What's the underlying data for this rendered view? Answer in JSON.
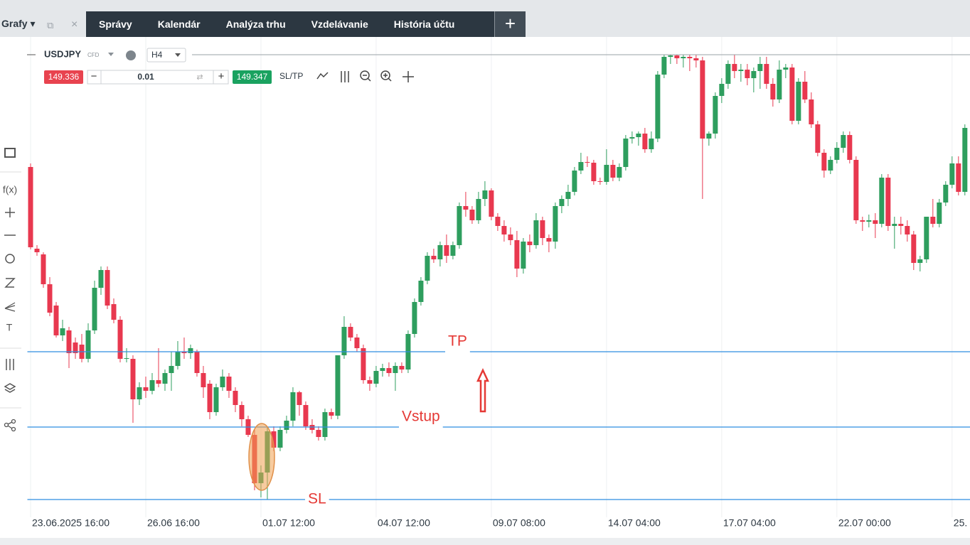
{
  "nav": {
    "home": "Grafy",
    "tabs": [
      "Správy",
      "Kalendár",
      "Analýza trhu",
      "Vzdelávanie",
      "História účtu"
    ]
  },
  "toolbar": {
    "symbol": "USDJPY",
    "symbol_type": "CFD",
    "timeframe": "H4",
    "bid": "149.336",
    "volume": "0.01",
    "ask": "149.347",
    "sl_tp": "SL/TP"
  },
  "left_toolbar": {
    "function_tool": "f(x)",
    "text_tool": "T"
  },
  "chart_data": {
    "type": "candlestick",
    "up_color": "#2e9e5e",
    "down_color": "#e8384f",
    "grid": true,
    "xlim": [
      -0.5,
      146.8
    ],
    "ylim": [
      142.75,
      149.4
    ],
    "xticks": [
      {
        "value": 0,
        "label": "23.06.2025 16:00"
      },
      {
        "value": 18,
        "label": "26.06 16:00"
      },
      {
        "value": 36,
        "label": "01.07 12:00"
      },
      {
        "value": 54,
        "label": "04.07 12:00"
      },
      {
        "value": 72,
        "label": "09.07 08:00"
      },
      {
        "value": 90,
        "label": "14.07 04:00"
      },
      {
        "value": 108,
        "label": "17.07 04:00"
      },
      {
        "value": 126,
        "label": "22.07 00:00"
      },
      {
        "value": 144,
        "label": "25."
      }
    ],
    "levels": [
      {
        "label": "TP",
        "value": 145.05,
        "color": "#2f8ee0"
      },
      {
        "label": "Vstup",
        "value": 143.99,
        "color": "#2f8ee0"
      },
      {
        "label": "SL",
        "value": 142.97,
        "color": "#2f8ee0"
      }
    ],
    "ohlc": [
      [
        147.65,
        147.7,
        146.49,
        146.52
      ],
      [
        146.5,
        146.55,
        146.4,
        146.45
      ],
      [
        146.42,
        146.45,
        145.95,
        146.0
      ],
      [
        146.0,
        146.1,
        145.55,
        145.6
      ],
      [
        145.7,
        145.75,
        145.25,
        145.28
      ],
      [
        145.28,
        145.5,
        145.2,
        145.38
      ],
      [
        145.35,
        145.4,
        144.82,
        145.03
      ],
      [
        145.18,
        145.25,
        144.95,
        145.03
      ],
      [
        145.15,
        145.3,
        144.9,
        144.95
      ],
      [
        144.95,
        145.45,
        144.9,
        145.35
      ],
      [
        145.35,
        146.05,
        145.3,
        145.95
      ],
      [
        145.95,
        146.25,
        145.85,
        146.2
      ],
      [
        146.2,
        146.25,
        145.65,
        145.7
      ],
      [
        145.72,
        145.8,
        145.45,
        145.5
      ],
      [
        145.5,
        145.55,
        144.9,
        144.95
      ],
      [
        144.95,
        145.1,
        144.9,
        144.96
      ],
      [
        144.95,
        145.0,
        144.05,
        144.38
      ],
      [
        144.38,
        144.62,
        144.3,
        144.55
      ],
      [
        144.55,
        144.7,
        144.4,
        144.5
      ],
      [
        144.5,
        144.75,
        144.45,
        144.65
      ],
      [
        144.65,
        145.1,
        144.55,
        144.6
      ],
      [
        144.6,
        144.8,
        144.5,
        144.75
      ],
      [
        144.75,
        145.05,
        144.5,
        144.85
      ],
      [
        144.85,
        145.2,
        144.8,
        145.05
      ],
      [
        145.05,
        145.25,
        144.95,
        145.03
      ],
      [
        145.03,
        145.15,
        144.95,
        145.1
      ],
      [
        145.05,
        145.08,
        144.7,
        144.75
      ],
      [
        144.75,
        144.85,
        144.4,
        144.55
      ],
      [
        144.6,
        144.65,
        144.1,
        144.2
      ],
      [
        144.2,
        144.6,
        144.15,
        144.55
      ],
      [
        144.55,
        144.8,
        144.5,
        144.7
      ],
      [
        144.7,
        144.75,
        144.4,
        144.5
      ],
      [
        144.5,
        144.55,
        144.2,
        144.3
      ],
      [
        144.3,
        144.35,
        144.0,
        144.1
      ],
      [
        144.1,
        144.15,
        143.85,
        143.88
      ],
      [
        143.88,
        143.95,
        143.1,
        143.2
      ],
      [
        143.2,
        143.45,
        143.0,
        143.35
      ],
      [
        143.35,
        144.0,
        142.97,
        143.93
      ],
      [
        143.93,
        144.0,
        143.65,
        143.7
      ],
      [
        143.7,
        144.0,
        143.65,
        143.95
      ],
      [
        143.95,
        144.15,
        143.9,
        144.08
      ],
      [
        144.08,
        144.55,
        144.0,
        144.48
      ],
      [
        144.48,
        144.5,
        144.15,
        144.3
      ],
      [
        144.3,
        144.35,
        143.95,
        144.0
      ],
      [
        144.02,
        144.1,
        143.9,
        143.95
      ],
      [
        143.95,
        144.0,
        143.8,
        143.85
      ],
      [
        143.85,
        144.25,
        143.8,
        144.2
      ],
      [
        144.2,
        144.25,
        144.1,
        144.15
      ],
      [
        144.15,
        145.0,
        144.1,
        145.0
      ],
      [
        145.0,
        145.55,
        144.95,
        145.4
      ],
      [
        145.4,
        145.45,
        145.2,
        145.25
      ],
      [
        145.25,
        145.3,
        145.05,
        145.1
      ],
      [
        145.1,
        145.15,
        144.6,
        144.65
      ],
      [
        144.65,
        144.7,
        144.5,
        144.6
      ],
      [
        144.6,
        144.85,
        144.55,
        144.78
      ],
      [
        144.78,
        144.88,
        144.7,
        144.82
      ],
      [
        144.82,
        144.9,
        144.7,
        144.75
      ],
      [
        144.75,
        144.9,
        144.5,
        144.85
      ],
      [
        144.85,
        144.9,
        144.75,
        144.8
      ],
      [
        144.8,
        145.35,
        144.75,
        145.3
      ],
      [
        145.3,
        145.8,
        145.25,
        145.75
      ],
      [
        145.75,
        146.1,
        145.7,
        146.05
      ],
      [
        146.05,
        146.45,
        146.0,
        146.4
      ],
      [
        146.4,
        146.5,
        146.3,
        146.35
      ],
      [
        146.35,
        146.6,
        146.25,
        146.55
      ],
      [
        146.55,
        146.7,
        146.3,
        146.4
      ],
      [
        146.4,
        146.6,
        146.35,
        146.55
      ],
      [
        146.55,
        147.15,
        146.5,
        147.1
      ],
      [
        147.1,
        147.3,
        146.95,
        147.05
      ],
      [
        147.05,
        147.1,
        146.85,
        146.9
      ],
      [
        146.9,
        147.3,
        146.85,
        147.2
      ],
      [
        147.2,
        147.45,
        147.1,
        147.32
      ],
      [
        147.32,
        147.35,
        146.9,
        146.95
      ],
      [
        146.95,
        147.0,
        146.75,
        146.82
      ],
      [
        146.82,
        146.9,
        146.6,
        146.7
      ],
      [
        146.7,
        146.8,
        146.55,
        146.62
      ],
      [
        146.62,
        146.75,
        146.1,
        146.22
      ],
      [
        146.22,
        146.65,
        146.15,
        146.6
      ],
      [
        146.6,
        146.7,
        146.45,
        146.55
      ],
      [
        146.55,
        147.0,
        146.5,
        146.9
      ],
      [
        146.9,
        146.95,
        146.55,
        146.65
      ],
      [
        146.65,
        146.7,
        146.45,
        146.6
      ],
      [
        146.6,
        147.15,
        146.5,
        147.1
      ],
      [
        147.1,
        147.25,
        147.0,
        147.2
      ],
      [
        147.2,
        147.4,
        147.1,
        147.3
      ],
      [
        147.3,
        147.65,
        147.25,
        147.6
      ],
      [
        147.6,
        147.85,
        147.55,
        147.72
      ],
      [
        147.72,
        147.8,
        147.65,
        147.71
      ],
      [
        147.71,
        147.75,
        147.4,
        147.45
      ],
      [
        147.45,
        147.5,
        147.4,
        147.44
      ],
      [
        147.44,
        147.9,
        147.4,
        147.68
      ],
      [
        147.68,
        147.75,
        147.45,
        147.5
      ],
      [
        147.5,
        147.7,
        147.45,
        147.65
      ],
      [
        147.65,
        148.1,
        147.6,
        148.05
      ],
      [
        148.05,
        148.15,
        147.98,
        148.07
      ],
      [
        148.07,
        148.15,
        147.95,
        148.12
      ],
      [
        148.12,
        148.2,
        147.85,
        147.9
      ],
      [
        147.9,
        148.15,
        147.85,
        148.05
      ],
      [
        148.05,
        149.0,
        148.0,
        148.95
      ],
      [
        148.95,
        149.23,
        148.9,
        149.2
      ],
      [
        149.2,
        149.23,
        149.1,
        149.22
      ],
      [
        149.22,
        149.23,
        149.1,
        149.18
      ],
      [
        149.18,
        149.23,
        149.05,
        149.2
      ],
      [
        149.2,
        149.23,
        149.0,
        149.18
      ],
      [
        149.18,
        149.23,
        149.05,
        149.15
      ],
      [
        149.15,
        149.2,
        147.2,
        148.05
      ],
      [
        148.05,
        148.15,
        147.95,
        148.12
      ],
      [
        148.12,
        148.7,
        148.05,
        148.65
      ],
      [
        148.65,
        148.9,
        148.55,
        148.82
      ],
      [
        148.82,
        149.15,
        148.75,
        149.1
      ],
      [
        149.1,
        149.23,
        148.9,
        149.0
      ],
      [
        149.0,
        149.1,
        148.85,
        149.02
      ],
      [
        149.02,
        149.1,
        148.8,
        148.9
      ],
      [
        148.9,
        149.05,
        148.7,
        149.0
      ],
      [
        149.0,
        149.2,
        148.75,
        149.1
      ],
      [
        149.1,
        149.2,
        148.75,
        148.82
      ],
      [
        148.82,
        148.9,
        148.5,
        148.6
      ],
      [
        148.6,
        149.15,
        148.55,
        149.02
      ],
      [
        149.02,
        149.1,
        148.9,
        149.05
      ],
      [
        149.05,
        149.1,
        148.25,
        148.3
      ],
      [
        148.3,
        148.9,
        148.25,
        148.85
      ],
      [
        148.85,
        149.0,
        148.55,
        148.6
      ],
      [
        148.6,
        148.7,
        148.2,
        148.25
      ],
      [
        148.25,
        148.3,
        147.8,
        147.85
      ],
      [
        147.85,
        147.9,
        147.5,
        147.6
      ],
      [
        147.6,
        147.8,
        147.55,
        147.75
      ],
      [
        147.75,
        148.0,
        147.7,
        147.92
      ],
      [
        147.92,
        148.15,
        147.85,
        148.1
      ],
      [
        148.1,
        148.15,
        147.7,
        147.75
      ],
      [
        147.75,
        147.8,
        146.85,
        146.9
      ],
      [
        146.9,
        146.95,
        146.75,
        146.88
      ],
      [
        146.88,
        146.98,
        146.8,
        146.9
      ],
      [
        146.9,
        147.0,
        146.65,
        146.85
      ],
      [
        146.85,
        147.55,
        146.8,
        147.5
      ],
      [
        147.5,
        147.55,
        146.75,
        146.82
      ],
      [
        146.82,
        146.95,
        146.5,
        146.85
      ],
      [
        146.85,
        146.95,
        146.7,
        146.82
      ],
      [
        146.82,
        146.9,
        146.6,
        146.7
      ],
      [
        146.7,
        146.75,
        146.2,
        146.3
      ],
      [
        146.3,
        146.4,
        146.18,
        146.35
      ],
      [
        146.35,
        146.95,
        146.3,
        146.95
      ],
      [
        146.95,
        147.2,
        146.8,
        146.85
      ],
      [
        146.85,
        147.2,
        146.8,
        147.15
      ],
      [
        147.15,
        147.45,
        147.1,
        147.4
      ],
      [
        147.4,
        147.8,
        147.35,
        147.7
      ],
      [
        147.7,
        147.8,
        147.25,
        147.3
      ],
      [
        147.3,
        148.25,
        147.25,
        148.2
      ]
    ]
  }
}
